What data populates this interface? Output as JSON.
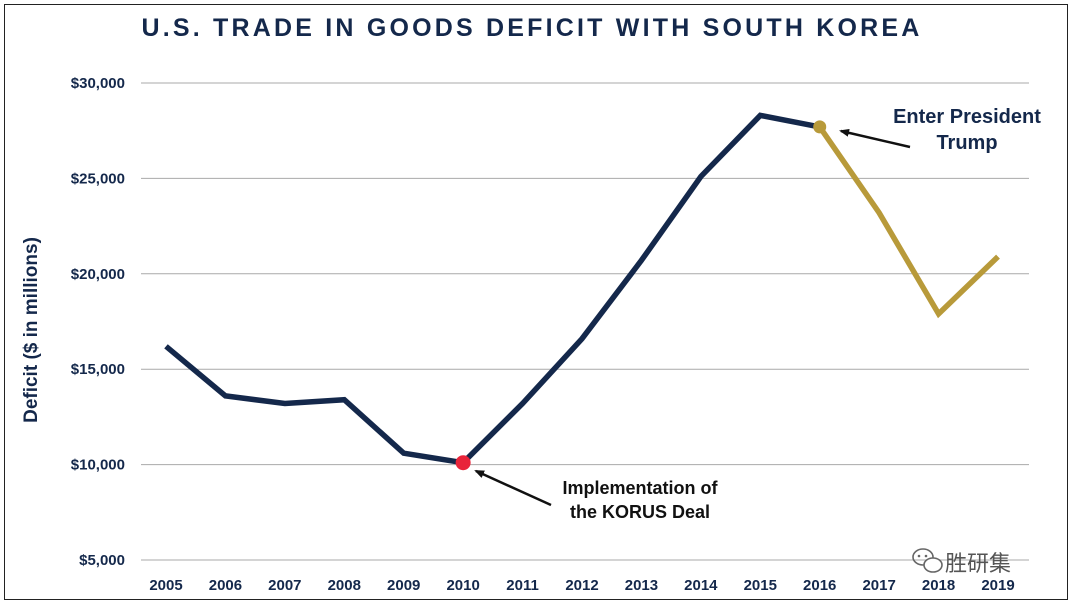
{
  "chart_data": {
    "type": "line",
    "title": "U.S. TRADE IN GOODS DEFICIT WITH SOUTH KOREA",
    "xlabel": "",
    "ylabel": "Deficit ($ in millions)",
    "ylim": [
      5000,
      30000
    ],
    "yticks": [
      5000,
      10000,
      15000,
      20000,
      25000,
      30000
    ],
    "ytick_labels": [
      "$5,000",
      "$10,000",
      "$15,000",
      "$20,000",
      "$25,000",
      "$30,000"
    ],
    "categories": [
      "2005",
      "2006",
      "2007",
      "2008",
      "2009",
      "2010",
      "2011",
      "2012",
      "2013",
      "2014",
      "2015",
      "2016",
      "2017",
      "2018",
      "2019"
    ],
    "values": [
      16200,
      13600,
      13200,
      13400,
      10600,
      10100,
      13200,
      16600,
      20700,
      25100,
      28300,
      27700,
      23200,
      17900,
      20900
    ],
    "series": [
      {
        "name": "pre-Trump",
        "from": "2005",
        "to": "2016",
        "color": "#14284b"
      },
      {
        "name": "Trump",
        "from": "2016",
        "to": "2019",
        "color": "#b89a3a"
      }
    ],
    "grid": true,
    "annotations": [
      {
        "lines": [
          "Implementation of",
          "the KORUS Deal"
        ],
        "at": "2010",
        "marker_color": "#e8243a"
      },
      {
        "lines": [
          "Enter President",
          "Trump"
        ],
        "at": "2016",
        "marker_color": "#b89a3a"
      }
    ]
  },
  "watermark": {
    "icon": "wechat-icon",
    "text": "胜研集"
  }
}
